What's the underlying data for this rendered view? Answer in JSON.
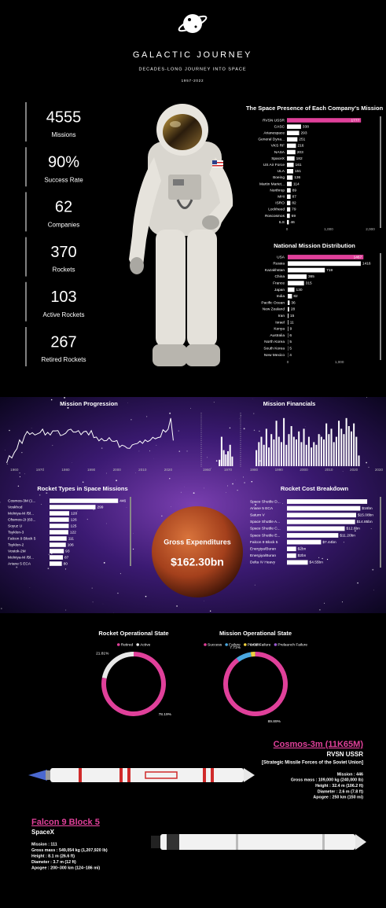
{
  "header": {
    "title": "GALACTIC JOURNEY",
    "subtitle": "DECADES-LONG JOURNEY INTO SPACE",
    "period": "1957-2022"
  },
  "kpis": [
    {
      "value": "4555",
      "label": "Missions"
    },
    {
      "value": "90%",
      "label": "Success Rate"
    },
    {
      "value": "62",
      "label": "Companies"
    },
    {
      "value": "370",
      "label": "Rockets"
    },
    {
      "value": "103",
      "label": "Active Rockets"
    },
    {
      "value": "267",
      "label": "Retired Rockets"
    }
  ],
  "chart_data": [
    {
      "type": "hbar",
      "title": "The Space Presence of Each Company's Mission",
      "categories": [
        "RVSN USSR",
        "CASC",
        "Arianespace",
        "General Dyna...",
        "VKS RF",
        "NASA",
        "SpaceX",
        "US Air Force",
        "ULA",
        "Boeing",
        "Martin Mariet...",
        "Northrop",
        "MHI",
        "ISRO",
        "Lockheed",
        "Roscosmos",
        "ILS"
      ],
      "values": [
        1777,
        338,
        293,
        251,
        216,
        203,
        182,
        161,
        151,
        136,
        114,
        89,
        87,
        82,
        79,
        69,
        46
      ],
      "color": "#ffffff",
      "highlight_color": "#e0409a",
      "xlim": [
        0,
        2000
      ],
      "xticks": [
        0,
        {
          "value": 1000,
          "label": "1,000"
        },
        {
          "value": 2000,
          "label": "2,000"
        }
      ]
    },
    {
      "type": "hbar",
      "title": "National Mission Distribution",
      "categories": [
        "USA",
        "Russia",
        "Kazakhstan",
        "China",
        "France",
        "Japan",
        "India",
        "Pacific Ocean",
        "New Zealand",
        "Iran",
        "Israel",
        "Kenya",
        "Australia",
        "North Korea",
        "South Korea",
        "New Mexico"
      ],
      "values": [
        1467,
        1416,
        719,
        365,
        315,
        130,
        82,
        36,
        28,
        15,
        11,
        9,
        6,
        5,
        5,
        4
      ],
      "color": "#ffffff",
      "highlight_color": "#e0409a",
      "xlim": [
        0,
        1600
      ],
      "xticks": [
        0,
        {
          "value": 1000,
          "label": "1,000"
        }
      ]
    },
    {
      "type": "line",
      "title": "Mission Progression",
      "x": [
        1957,
        1958,
        1959,
        1960,
        1961,
        1962,
        1963,
        1964,
        1965,
        1966,
        1967,
        1968,
        1969,
        1970,
        1971,
        1972,
        1973,
        1974,
        1975,
        1976,
        1977,
        1978,
        1979,
        1980,
        1981,
        1982,
        1983,
        1984,
        1985,
        1986,
        1987,
        1988,
        1989,
        1990,
        1991,
        1992,
        1993,
        1994,
        1995,
        1996,
        1997,
        1998,
        1999,
        2000,
        2001,
        2002,
        2003,
        2004,
        2005,
        2006,
        2007,
        2008,
        2009,
        2010,
        2011,
        2012,
        2013,
        2014,
        2015,
        2016,
        2017,
        2018,
        2019,
        2020,
        2021,
        2022
      ],
      "values": [
        3,
        28,
        20,
        39,
        52,
        82,
        70,
        96,
        111,
        101,
        107,
        99,
        103,
        107,
        119,
        99,
        108,
        99,
        113,
        113,
        114,
        97,
        100,
        105,
        116,
        119,
        109,
        109,
        114,
        100,
        110,
        112,
        99,
        114,
        90,
        92,
        79,
        87,
        79,
        80,
        90,
        78,
        77,
        80,
        57,
        64,
        61,
        54,
        53,
        65,
        68,
        70,
        78,
        70,
        82,
        76,
        81,
        91,
        86,
        90,
        92,
        117,
        109,
        119,
        157,
        80
      ],
      "color": "#ffffff",
      "xlim": [
        1955,
        2025
      ],
      "ylim": [
        0,
        170
      ],
      "xticks": [
        1960,
        1970,
        1980,
        1990,
        2000,
        2010,
        2020
      ]
    },
    {
      "type": "column",
      "title": "Mission Financials",
      "x": [
        1966,
        1967,
        1968,
        1969,
        1970,
        1971,
        1972,
        1981,
        1982,
        1983,
        1984,
        1985,
        1986,
        1987,
        1988,
        1989,
        1990,
        1991,
        1992,
        1993,
        1994,
        1995,
        1996,
        1997,
        1998,
        1999,
        2000,
        2001,
        2002,
        2003,
        2004,
        2005,
        2006,
        2007,
        2008,
        2009,
        2010,
        2011,
        2012,
        2013,
        2014,
        2015,
        2016,
        2017,
        2018,
        2019,
        2020,
        2021,
        2022
      ],
      "values": [
        12,
        55,
        30,
        22,
        28,
        40,
        18,
        30,
        45,
        55,
        40,
        70,
        35,
        60,
        50,
        85,
        55,
        45,
        90,
        40,
        60,
        75,
        55,
        50,
        65,
        45,
        70,
        40,
        55,
        35,
        45,
        40,
        60,
        55,
        50,
        80,
        60,
        70,
        45,
        55,
        85,
        70,
        60,
        90,
        75,
        65,
        80,
        55,
        20
      ],
      "color": "#ffffff",
      "ylim": [
        0,
        100
      ],
      "panels": [
        {
          "xlim": [
            1958,
            1974
          ],
          "xticks": [
            1960,
            1970
          ]
        },
        {
          "xlim": [
            1978,
            2032
          ],
          "xticks": [
            1980,
            1990,
            2000,
            2010,
            2020,
            2030
          ]
        }
      ]
    },
    {
      "type": "hbar",
      "title": "Rocket Types in Space Missions",
      "categories": [
        "Cosmos-3M (1...",
        "Voskhod",
        "Molniya-M /Bl...",
        "Cosmos-2I (63...",
        "Soyuz U",
        "Tsyklon-3",
        "Falcon 9 Block 5",
        "Tsyklon-2",
        "Vostok-2M",
        "Molniya-M /Bl...",
        "Ariane 5 ECA"
      ],
      "values": [
        446,
        299,
        128,
        126,
        125,
        122,
        111,
        106,
        93,
        87,
        80
      ],
      "color": "#ffffff",
      "xlim": [
        0,
        450
      ]
    },
    {
      "type": "hbar",
      "title": "Rocket Cost Breakdown",
      "categories": [
        "Space Shuttle D...",
        "Ariane 5 ECA",
        "Saturn V",
        "Space Shuttle A...",
        "Space Shuttle C...",
        "Space Shuttle E...",
        "Falcon 9 Block 5",
        "Energiya/Buran",
        "Energiya/Buran",
        "Delta IV Heavy"
      ],
      "values": [
        17.5,
        16,
        15.08,
        14.85,
        12.6,
        11.2,
        7.44,
        2,
        2,
        4.55
      ],
      "value_labels": [
        null,
        "$16bn",
        "$15.08bn",
        "$14.85bn",
        "$12.6bn",
        "$11.20bn",
        "$7.44bn",
        "$2bn",
        "$2bn",
        "$4.55bn"
      ],
      "color": "#ffffff",
      "xlim": [
        0,
        18
      ]
    },
    {
      "type": "donut",
      "title": "Rocket Operational State",
      "categories": [
        "Retired",
        "Active"
      ],
      "values": [
        78.19,
        21.81
      ],
      "value_labels": [
        "78.19%",
        "21.81%"
      ],
      "colors": [
        "#e0409a",
        "#e8e8e8"
      ]
    },
    {
      "type": "donut",
      "title": "Mission Operational State",
      "categories": [
        "Success",
        "Failure",
        "Partial Failure",
        "Prelaunch Failure"
      ],
      "values": [
        89.89,
        7.71,
        2.31,
        0.09
      ],
      "value_labels": [
        "89.89%",
        "7.71%",
        null,
        "0.09%"
      ],
      "colors": [
        "#e0409a",
        "#4aa8e0",
        "#f0d040",
        "#9a5ad0"
      ]
    }
  ],
  "expenditure": {
    "label": "Gross Expenditures",
    "value": "$162.30bn"
  },
  "rockets": [
    {
      "name": "Cosmos-3m (11K65M)",
      "company": "RVSN USSR",
      "company_full": "[Strategic Missile Forces of the Soviet Union]",
      "specs": [
        "Mission : 446",
        "Gross mass : 109,000 kg (240,000 lb)",
        "Height : 32.4 m (106.2 ft)",
        "Diameter : 2.6 m (7.8 ft)",
        "Apogee : 250 km (150 mi)"
      ]
    },
    {
      "name": "Falcon 9 Block 5",
      "company": "SpaceX",
      "specs": [
        "Mission : 111",
        "Gross mass : 549,054 kg (1,207,920 lb)",
        "Height : 8.1 m (26.6 ft)",
        "Diameter : 3.7 m (12 ft)",
        "Apogee : 200–300 km (124–186 mi)"
      ]
    }
  ]
}
